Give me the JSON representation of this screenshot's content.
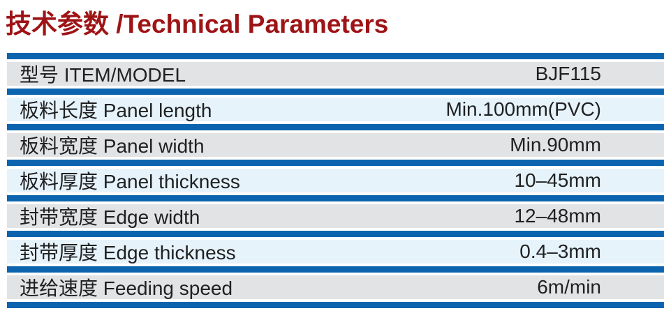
{
  "title": "技术参数 /Technical Parameters",
  "colors": {
    "title_red": "#9e1416",
    "bar_blue": "#0d64ae",
    "row_gray": "#e2e3e4",
    "row_blue": "#e6f3fb",
    "text": "#1f2022"
  },
  "table": {
    "rows": [
      {
        "label": "型号 ITEM/MODEL",
        "value": "BJF115"
      },
      {
        "label": "板料长度 Panel length",
        "value": "Min.100mm(PVC)"
      },
      {
        "label": "板料宽度 Panel width",
        "value": "Min.90mm"
      },
      {
        "label": "板料厚度 Panel thickness",
        "value": "10–45mm"
      },
      {
        "label": "封带宽度 Edge width",
        "value": "12–48mm"
      },
      {
        "label": "封带厚度 Edge thickness",
        "value": "0.4–3mm"
      },
      {
        "label": "进给速度 Feeding speed",
        "value": "6m/min"
      }
    ]
  }
}
